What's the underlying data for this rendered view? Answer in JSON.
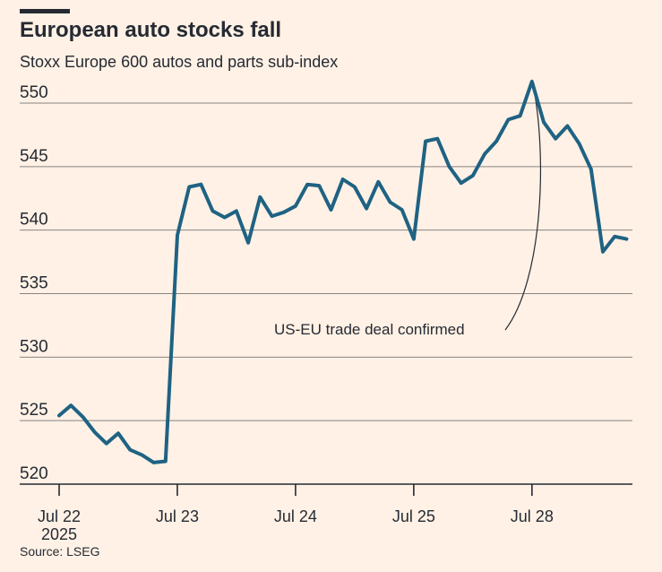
{
  "header": {
    "title": "European auto stocks fall",
    "subtitle": "Stoxx Europe 600 autos and parts sub-index"
  },
  "footer": {
    "source": "Source: LSEG"
  },
  "colors": {
    "background": "#fff1e5",
    "line": "#1f6283",
    "grid": "#262a33",
    "text": "#262a33"
  },
  "chart_data": {
    "type": "line",
    "title": "European auto stocks fall",
    "subtitle": "Stoxx Europe 600 autos and parts sub-index",
    "xlabel": "",
    "ylabel": "",
    "ylim": [
      520,
      552
    ],
    "grid": "horizontal",
    "y_ticks": [
      520,
      525,
      530,
      535,
      540,
      545,
      550
    ],
    "x_ticks": [
      {
        "x": 0,
        "label": "Jul 22",
        "sublabel": "2025"
      },
      {
        "x": 10,
        "label": "Jul 23",
        "sublabel": ""
      },
      {
        "x": 20,
        "label": "Jul 24",
        "sublabel": ""
      },
      {
        "x": 30,
        "label": "Jul 25",
        "sublabel": ""
      },
      {
        "x": 40,
        "label": "Jul 28",
        "sublabel": ""
      }
    ],
    "xlim": [
      0,
      48.5
    ],
    "series": [
      {
        "points": [
          [
            0,
            525.4
          ],
          [
            1,
            526.2
          ],
          [
            2,
            525.3
          ],
          [
            3,
            524.1
          ],
          [
            4,
            523.2
          ],
          [
            5,
            524.0
          ],
          [
            6,
            522.7
          ],
          [
            7,
            522.3
          ],
          [
            8,
            521.7
          ],
          [
            9,
            521.8
          ],
          [
            10,
            539.6
          ],
          [
            11,
            543.4
          ],
          [
            12,
            543.6
          ],
          [
            13,
            541.5
          ],
          [
            14,
            541.0
          ],
          [
            15,
            541.5
          ],
          [
            16,
            539.0
          ],
          [
            17,
            542.6
          ],
          [
            18,
            541.1
          ],
          [
            19,
            541.4
          ],
          [
            20,
            541.9
          ],
          [
            21,
            543.6
          ],
          [
            22,
            543.5
          ],
          [
            23,
            541.6
          ],
          [
            24,
            544.0
          ],
          [
            25,
            543.4
          ],
          [
            26,
            541.7
          ],
          [
            27,
            543.8
          ],
          [
            28,
            542.2
          ],
          [
            29,
            541.6
          ],
          [
            30,
            539.3
          ],
          [
            31,
            547.0
          ],
          [
            32,
            547.2
          ],
          [
            33,
            545.0
          ],
          [
            34,
            543.7
          ],
          [
            35,
            544.3
          ],
          [
            36,
            546.0
          ],
          [
            37,
            547.0
          ],
          [
            38,
            548.7
          ],
          [
            39,
            549.0
          ],
          [
            40,
            551.7
          ],
          [
            41,
            548.5
          ],
          [
            42,
            547.2
          ],
          [
            43,
            548.2
          ],
          [
            44,
            546.8
          ],
          [
            45,
            544.8
          ],
          [
            46,
            538.3
          ],
          [
            47,
            539.5
          ],
          [
            48,
            539.3
          ]
        ]
      }
    ],
    "annotations": [
      {
        "text": "US-EU trade deal confirmed",
        "x": 40,
        "y": 551.7
      }
    ]
  }
}
